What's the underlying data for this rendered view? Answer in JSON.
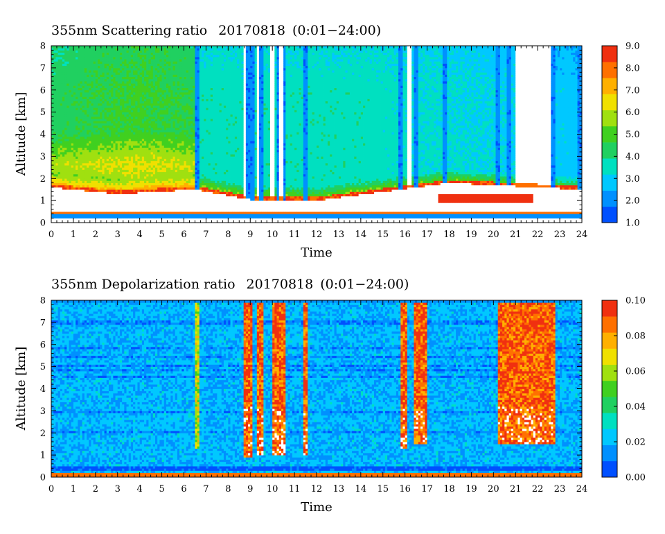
{
  "chart_data": [
    {
      "type": "heatmap",
      "title": "355nm Scattering ratio",
      "date": "20170818",
      "time_range": "(0:01−24:00)",
      "xlabel": "Time",
      "ylabel": "Altitude [km]",
      "xlim": [
        0,
        24
      ],
      "ylim": [
        0,
        8
      ],
      "x_ticks": [
        "0",
        "1",
        "2",
        "3",
        "4",
        "5",
        "6",
        "7",
        "8",
        "9",
        "10",
        "11",
        "12",
        "13",
        "14",
        "15",
        "16",
        "17",
        "18",
        "19",
        "20",
        "21",
        "22",
        "23",
        "24"
      ],
      "y_ticks": [
        "0",
        "1",
        "2",
        "3",
        "4",
        "5",
        "6",
        "7",
        "8"
      ],
      "colorbar": {
        "range": [
          1.0,
          9.0
        ],
        "ticks": [
          "1.0",
          "2.0",
          "3.0",
          "4.0",
          "5.0",
          "6.0",
          "7.0",
          "8.0",
          "9.0"
        ],
        "colors": [
          "#0050ff",
          "#0090ff",
          "#00c8ff",
          "#00e0c0",
          "#20d060",
          "#40d020",
          "#a0e010",
          "#f0e000",
          "#ffb000",
          "#ff7000",
          "#f03010"
        ]
      },
      "color_no_data": "#ffffff",
      "features": {
        "boundary_layer_top_km": [
          [
            0,
            1.6
          ],
          [
            3,
            1.3
          ],
          [
            6.5,
            1.5
          ],
          [
            9,
            1.05
          ],
          [
            12,
            1.0
          ],
          [
            15,
            1.4
          ],
          [
            18,
            1.8
          ],
          [
            21,
            1.65
          ],
          [
            24,
            1.5
          ]
        ],
        "surface_band_km": [
          0.25,
          0.5
        ],
        "high_signal_band_km": [
          1.0,
          3.5
        ],
        "cloud_columns_hours": [
          6.6,
          8.9,
          9.1,
          9.5,
          10.0,
          10.3,
          10.5,
          11.5,
          15.8,
          16.5,
          17.8,
          20.2,
          20.7,
          22.7,
          23.9
        ],
        "clear_gap_hours": [
          [
            8.7,
            8.85
          ],
          [
            9.3,
            9.4
          ],
          [
            9.9,
            10.1
          ],
          [
            10.35,
            10.45
          ],
          [
            16.15,
            16.3
          ],
          [
            21.0,
            22.6
          ]
        ],
        "elevated_layer": {
          "x": [
            17.5,
            21.8
          ],
          "y_km": [
            0.9,
            1.3
          ],
          "value": 8.5
        }
      }
    },
    {
      "type": "heatmap",
      "title": "355nm Depolarization ratio",
      "date": "20170818",
      "time_range": "(0:01−24:00)",
      "xlabel": "Time",
      "ylabel": "Altitude [km]",
      "xlim": [
        0,
        24
      ],
      "ylim": [
        0,
        8
      ],
      "x_ticks": [
        "0",
        "1",
        "2",
        "3",
        "4",
        "5",
        "6",
        "7",
        "8",
        "9",
        "10",
        "11",
        "12",
        "13",
        "14",
        "15",
        "16",
        "17",
        "18",
        "19",
        "20",
        "21",
        "22",
        "23",
        "24"
      ],
      "y_ticks": [
        "0",
        "1",
        "2",
        "3",
        "4",
        "5",
        "6",
        "7",
        "8"
      ],
      "colorbar": {
        "range": [
          0.0,
          0.1
        ],
        "ticks": [
          "0.00",
          "0.02",
          "0.04",
          "0.06",
          "0.08",
          "0.10"
        ],
        "colors": [
          "#0050ff",
          "#0090ff",
          "#00c8ff",
          "#00e0c0",
          "#20d060",
          "#40d020",
          "#a0e010",
          "#f0e000",
          "#ffb000",
          "#ff7000",
          "#f03010"
        ]
      },
      "color_no_data": "#ffffff",
      "features": {
        "background_value": 0.02,
        "surface_band_km": [
          0.0,
          0.15
        ],
        "high_depol_columns": [
          {
            "x": [
              8.7,
              9.1
            ],
            "y_km": [
              0.9,
              8.0
            ]
          },
          {
            "x": [
              9.3,
              9.6
            ],
            "y_km": [
              1.0,
              8.0
            ]
          },
          {
            "x": [
              10.0,
              10.6
            ],
            "y_km": [
              1.0,
              8.0
            ]
          },
          {
            "x": [
              11.4,
              11.6
            ],
            "y_km": [
              1.0,
              8.0
            ]
          },
          {
            "x": [
              15.8,
              16.1
            ],
            "y_km": [
              1.3,
              8.0
            ]
          },
          {
            "x": [
              16.4,
              17.0
            ],
            "y_km": [
              1.5,
              8.0
            ]
          },
          {
            "x": [
              20.2,
              22.8
            ],
            "y_km": [
              1.5,
              8.0
            ]
          }
        ],
        "thin_column_hours": [
          6.6
        ]
      }
    }
  ]
}
